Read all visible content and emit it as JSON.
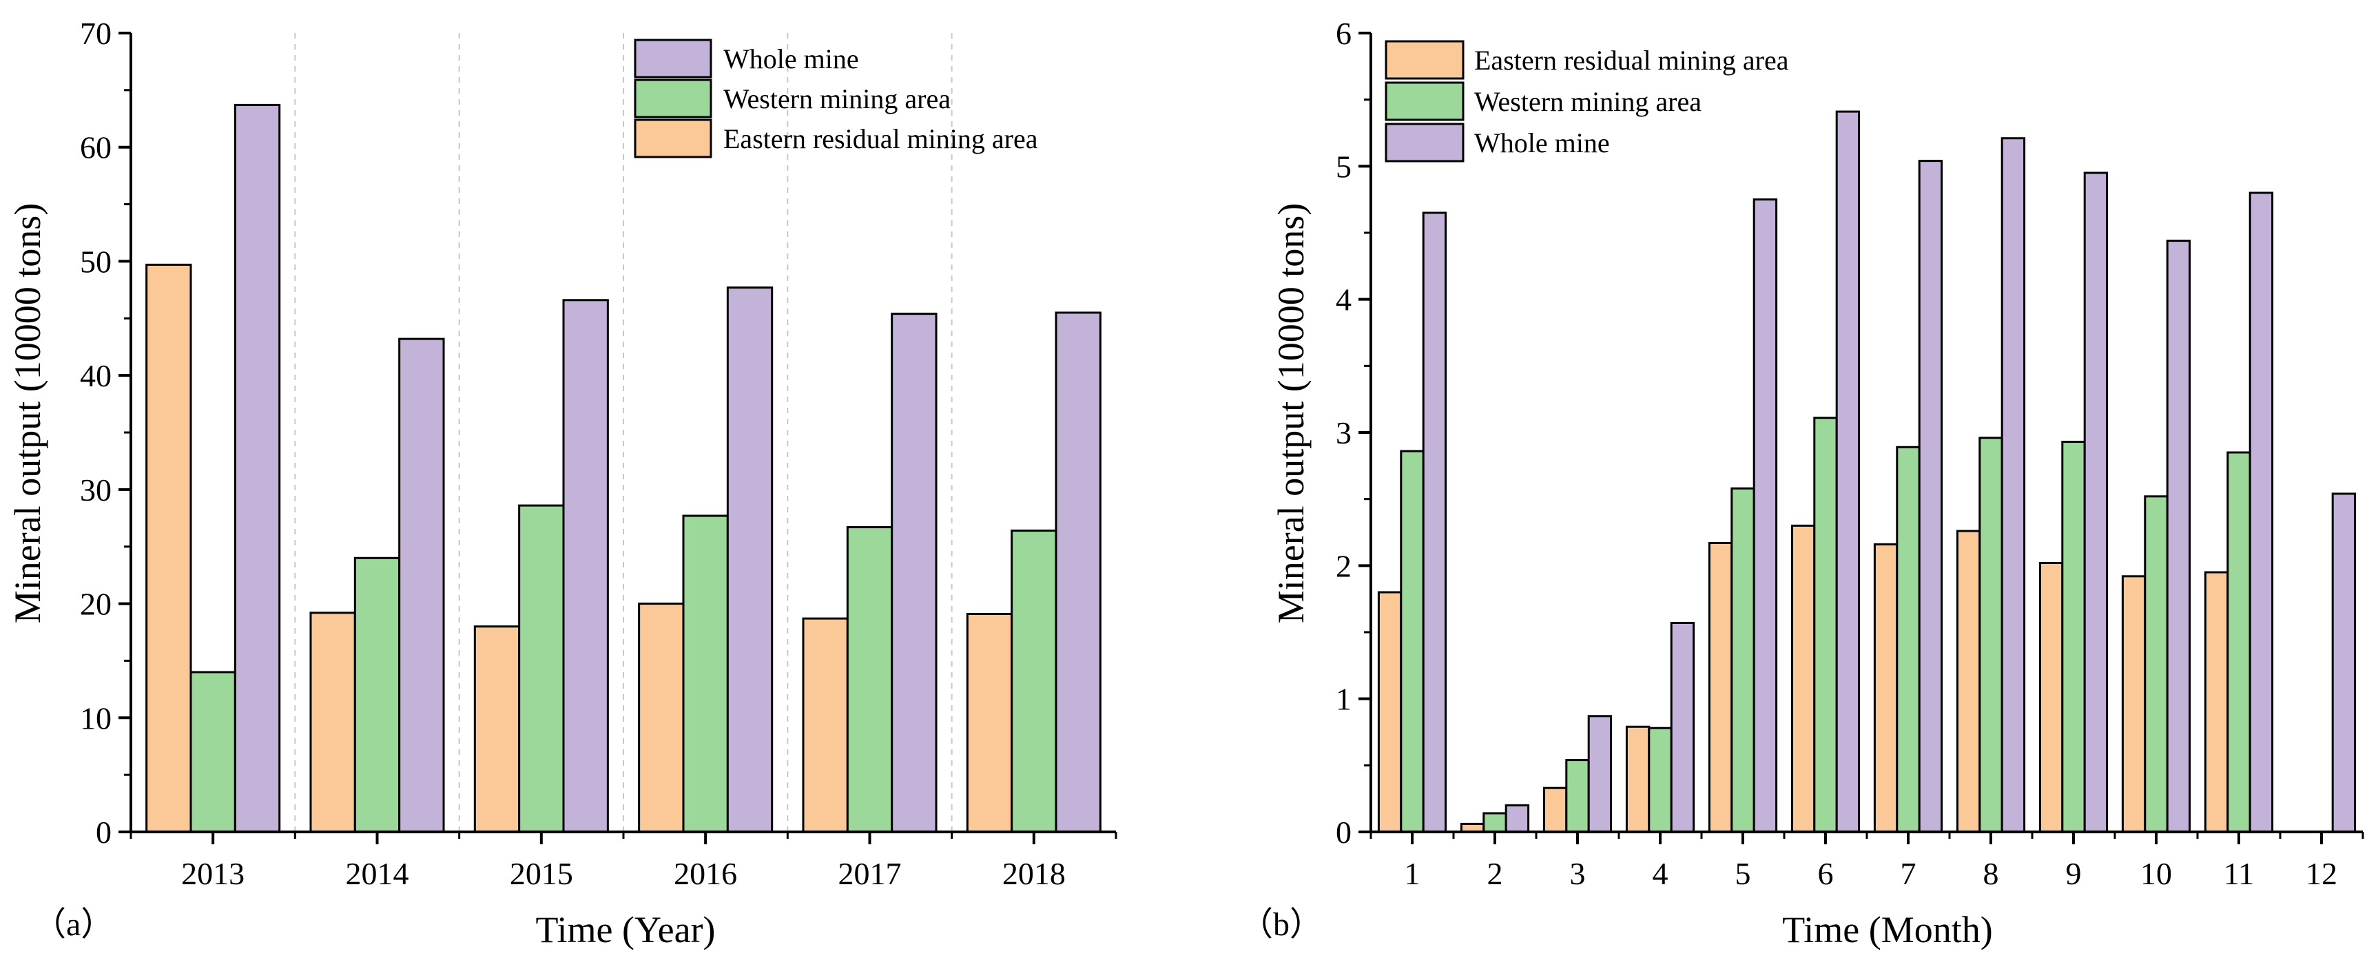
{
  "colors": {
    "eastern": "#fbc898",
    "western": "#9bd89a",
    "whole": "#c3b3d8",
    "stroke": "#000000"
  },
  "chart_data": [
    {
      "type": "bar",
      "panel_label": "（a）",
      "xlabel": "Time (Year)",
      "ylabel": "Mineral output (10000 tons)",
      "ylim": [
        0,
        70
      ],
      "yticks": [
        0,
        10,
        20,
        30,
        40,
        50,
        60,
        70
      ],
      "categories": [
        "2013",
        "2014",
        "2015",
        "2016",
        "2017",
        "2018"
      ],
      "series": [
        {
          "name": "Eastern residual mining area",
          "key": "eastern",
          "values": [
            49.7,
            19.2,
            18.0,
            20.0,
            18.7,
            19.1
          ]
        },
        {
          "name": "Western mining area",
          "key": "western",
          "values": [
            14.0,
            24.0,
            28.6,
            27.7,
            26.7,
            26.4
          ]
        },
        {
          "name": "Whole mine",
          "key": "whole",
          "values": [
            63.7,
            43.2,
            46.6,
            47.7,
            45.4,
            45.5
          ]
        }
      ],
      "legend_order": [
        "Whole mine",
        "Western mining area",
        "Eastern residual mining area"
      ],
      "legend": "top-right",
      "vertical_separators": true
    },
    {
      "type": "bar",
      "panel_label": "（b）",
      "xlabel": "Time (Month)",
      "ylabel": "Mineral output (10000 tons)",
      "ylim": [
        0,
        6
      ],
      "yticks": [
        0,
        1,
        2,
        3,
        4,
        5,
        6
      ],
      "categories": [
        "1",
        "2",
        "3",
        "4",
        "5",
        "6",
        "7",
        "8",
        "9",
        "10",
        "11",
        "12"
      ],
      "series": [
        {
          "name": "Eastern residual mining area",
          "key": "eastern",
          "values": [
            1.8,
            0.06,
            0.33,
            0.79,
            2.17,
            2.3,
            2.16,
            2.26,
            2.02,
            1.92,
            1.95,
            0
          ]
        },
        {
          "name": "Western mining area",
          "key": "western",
          "values": [
            2.86,
            0.14,
            0.54,
            0.78,
            2.58,
            3.11,
            2.89,
            2.96,
            2.93,
            2.52,
            2.85,
            0
          ]
        },
        {
          "name": "Whole mine",
          "key": "whole",
          "values": [
            4.65,
            0.2,
            0.87,
            1.57,
            4.75,
            5.41,
            5.04,
            5.21,
            4.95,
            4.44,
            4.8,
            2.54
          ]
        }
      ],
      "legend_order": [
        "Eastern residual mining area",
        "Western mining area",
        "Whole mine"
      ],
      "legend": "top-left",
      "vertical_separators": false
    }
  ]
}
